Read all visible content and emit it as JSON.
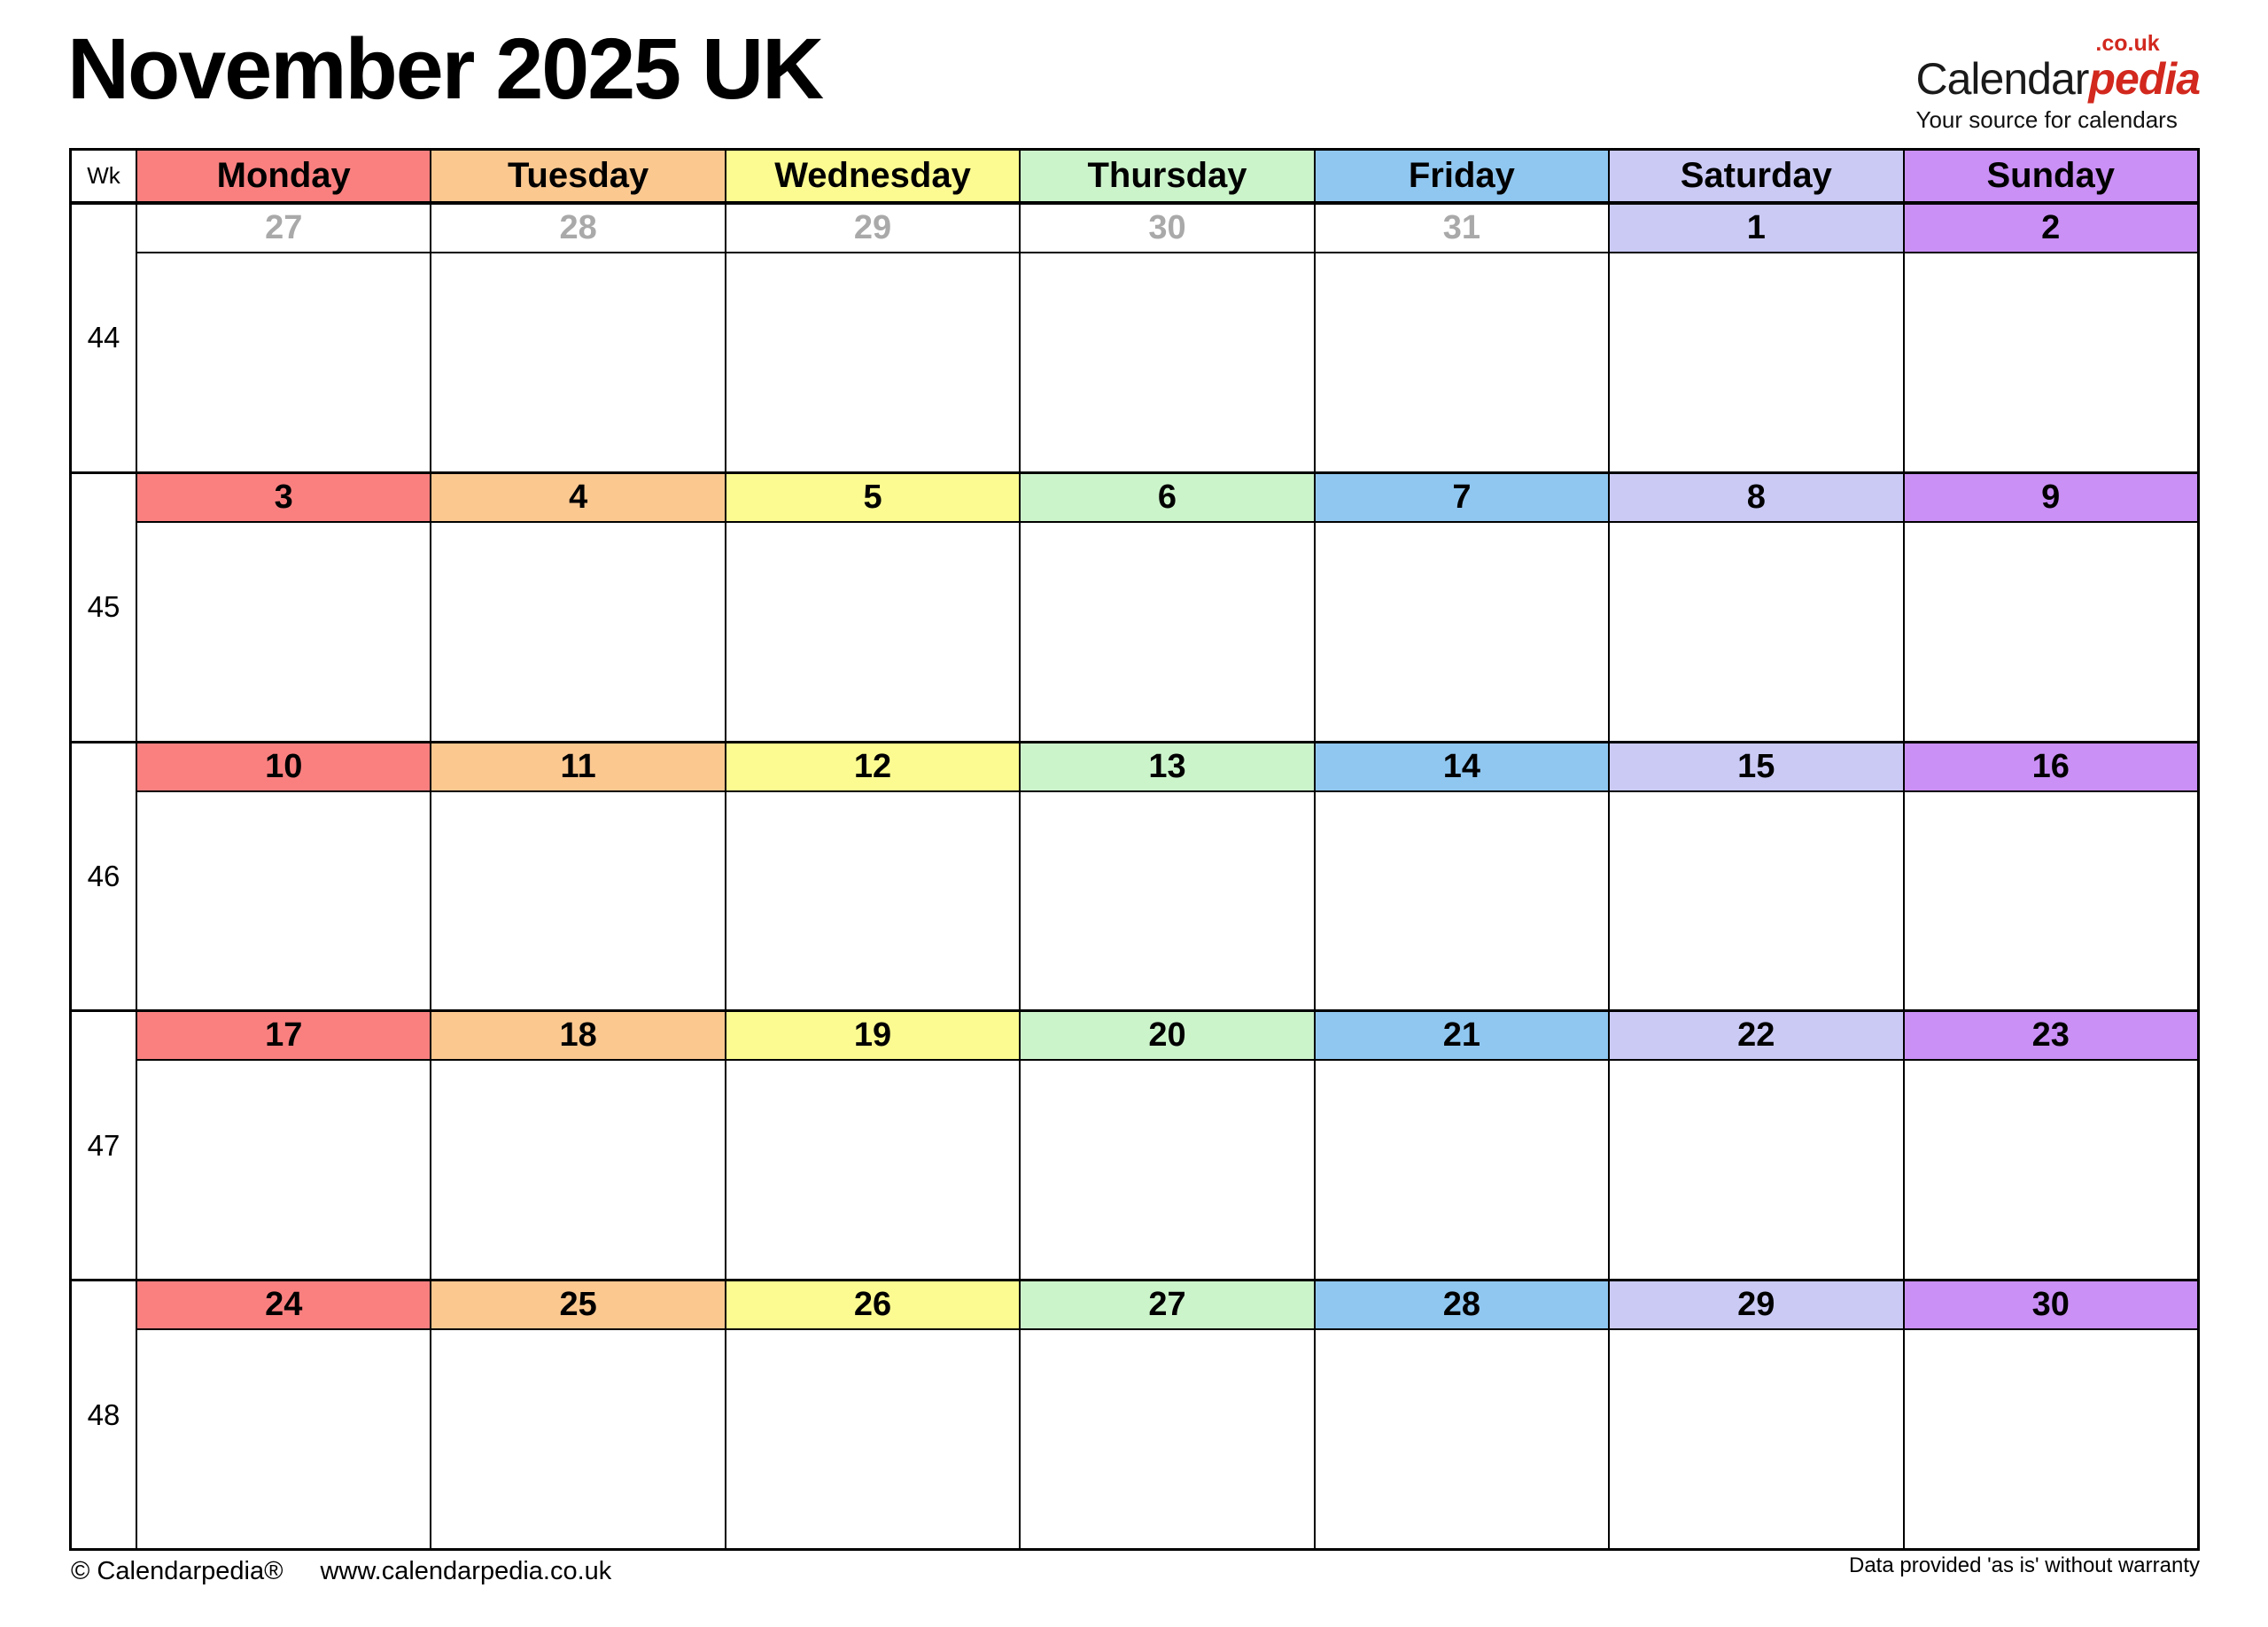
{
  "page": {
    "title": "November 2025 UK"
  },
  "logo": {
    "brand_black": "Calendar",
    "brand_red": "pedia",
    "domain_suffix": ".co.uk",
    "tagline": "Your source for calendars"
  },
  "footer": {
    "copyright": "© Calendarpedia®",
    "website": "www.calendarpedia.co.uk",
    "disclaimer": "Data provided 'as is' without warranty"
  },
  "colors": {
    "monday": "#FA8080",
    "tuesday": "#FBC890",
    "wednesday": "#FBFB91",
    "thursday": "#CCF4CB",
    "friday": "#90C7F0",
    "saturday": "#CACAF5",
    "sunday": "#CA90F5",
    "out_month_text": "#A9A9A9",
    "in_month_text": "#000000",
    "out_month_bg": "#FFFFFF"
  },
  "calendar": {
    "week_column_label": "Wk",
    "day_headers": [
      {
        "label": "Monday",
        "key": "monday"
      },
      {
        "label": "Tuesday",
        "key": "tuesday"
      },
      {
        "label": "Wednesday",
        "key": "wednesday"
      },
      {
        "label": "Thursday",
        "key": "thursday"
      },
      {
        "label": "Friday",
        "key": "friday"
      },
      {
        "label": "Saturday",
        "key": "saturday"
      },
      {
        "label": "Sunday",
        "key": "sunday"
      }
    ],
    "weeks": [
      {
        "week_number": "44",
        "days": [
          {
            "date": "27",
            "in_month": false
          },
          {
            "date": "28",
            "in_month": false
          },
          {
            "date": "29",
            "in_month": false
          },
          {
            "date": "30",
            "in_month": false
          },
          {
            "date": "31",
            "in_month": false
          },
          {
            "date": "1",
            "in_month": true
          },
          {
            "date": "2",
            "in_month": true
          }
        ]
      },
      {
        "week_number": "45",
        "days": [
          {
            "date": "3",
            "in_month": true
          },
          {
            "date": "4",
            "in_month": true
          },
          {
            "date": "5",
            "in_month": true
          },
          {
            "date": "6",
            "in_month": true
          },
          {
            "date": "7",
            "in_month": true
          },
          {
            "date": "8",
            "in_month": true
          },
          {
            "date": "9",
            "in_month": true
          }
        ]
      },
      {
        "week_number": "46",
        "days": [
          {
            "date": "10",
            "in_month": true
          },
          {
            "date": "11",
            "in_month": true
          },
          {
            "date": "12",
            "in_month": true
          },
          {
            "date": "13",
            "in_month": true
          },
          {
            "date": "14",
            "in_month": true
          },
          {
            "date": "15",
            "in_month": true
          },
          {
            "date": "16",
            "in_month": true
          }
        ]
      },
      {
        "week_number": "47",
        "days": [
          {
            "date": "17",
            "in_month": true
          },
          {
            "date": "18",
            "in_month": true
          },
          {
            "date": "19",
            "in_month": true
          },
          {
            "date": "20",
            "in_month": true
          },
          {
            "date": "21",
            "in_month": true
          },
          {
            "date": "22",
            "in_month": true
          },
          {
            "date": "23",
            "in_month": true
          }
        ]
      },
      {
        "week_number": "48",
        "days": [
          {
            "date": "24",
            "in_month": true
          },
          {
            "date": "25",
            "in_month": true
          },
          {
            "date": "26",
            "in_month": true
          },
          {
            "date": "27",
            "in_month": true
          },
          {
            "date": "28",
            "in_month": true
          },
          {
            "date": "29",
            "in_month": true
          },
          {
            "date": "30",
            "in_month": true
          }
        ]
      }
    ]
  }
}
